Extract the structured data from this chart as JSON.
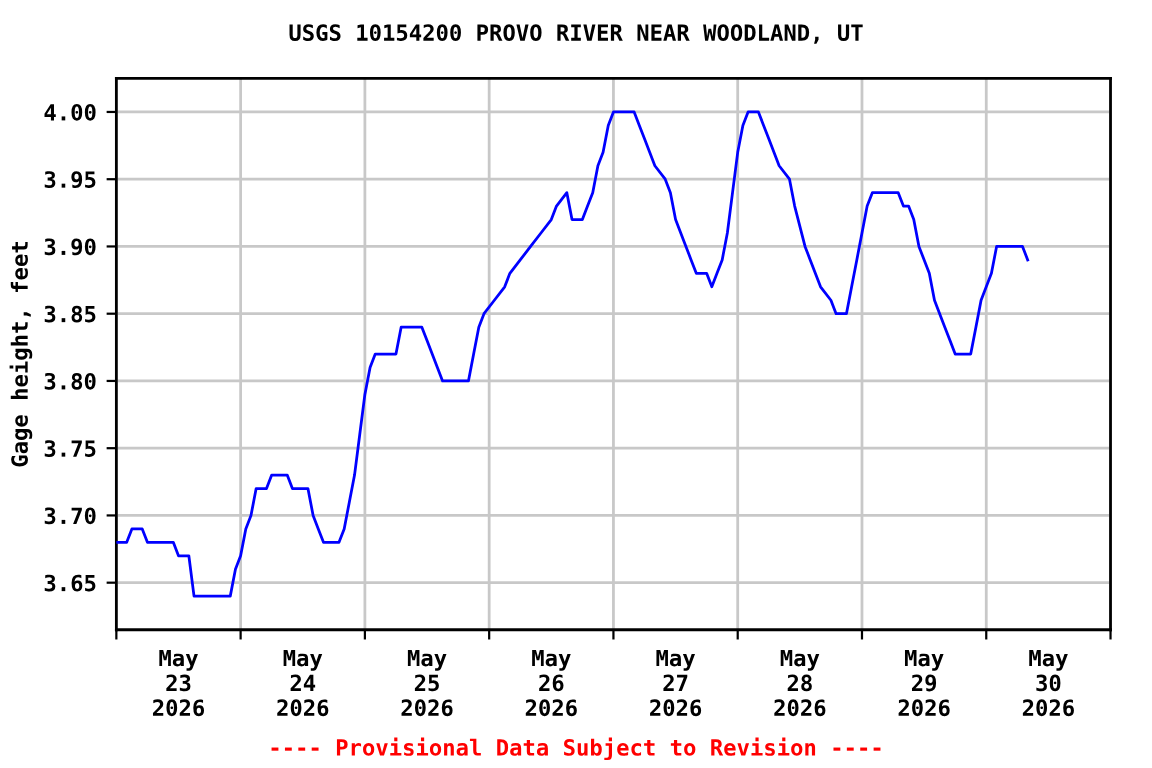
{
  "chart_data": {
    "type": "line",
    "title": "USGS 10154200 PROVO RIVER NEAR WOODLAND, UT",
    "ylabel": "Gage height, feet",
    "annotations": [
      "---- Provisional Data Subject to Revision ----"
    ],
    "x": [
      "2026-05-23T00:00",
      "2026-05-23T02:00",
      "2026-05-23T03:00",
      "2026-05-23T05:00",
      "2026-05-23T06:00",
      "2026-05-23T11:00",
      "2026-05-23T12:00",
      "2026-05-23T14:00",
      "2026-05-23T15:00",
      "2026-05-23T22:00",
      "2026-05-23T23:00",
      "2026-05-24T00:00",
      "2026-05-24T01:00",
      "2026-05-24T02:00",
      "2026-05-24T03:00",
      "2026-05-24T05:00",
      "2026-05-24T06:00",
      "2026-05-24T09:00",
      "2026-05-24T10:00",
      "2026-05-24T13:00",
      "2026-05-24T14:00",
      "2026-05-24T15:00",
      "2026-05-24T16:00",
      "2026-05-24T19:00",
      "2026-05-24T20:00",
      "2026-05-24T21:00",
      "2026-05-24T22:00",
      "2026-05-24T23:00",
      "2026-05-25T00:00",
      "2026-05-25T01:00",
      "2026-05-25T02:00",
      "2026-05-25T06:00",
      "2026-05-25T07:00",
      "2026-05-25T11:00",
      "2026-05-25T12:00",
      "2026-05-25T13:00",
      "2026-05-25T14:00",
      "2026-05-25T15:00",
      "2026-05-25T20:00",
      "2026-05-25T21:00",
      "2026-05-25T22:00",
      "2026-05-25T23:00",
      "2026-05-26T01:00",
      "2026-05-26T03:00",
      "2026-05-26T04:00",
      "2026-05-26T06:00",
      "2026-05-26T08:00",
      "2026-05-26T10:00",
      "2026-05-26T12:00",
      "2026-05-26T13:00",
      "2026-05-26T15:00",
      "2026-05-26T16:00",
      "2026-05-26T18:00",
      "2026-05-26T19:00",
      "2026-05-26T20:00",
      "2026-05-26T21:00",
      "2026-05-26T22:00",
      "2026-05-26T23:00",
      "2026-05-27T00:00",
      "2026-05-27T04:00",
      "2026-05-27T05:00",
      "2026-05-27T06:00",
      "2026-05-27T07:00",
      "2026-05-27T08:00",
      "2026-05-27T10:00",
      "2026-05-27T11:00",
      "2026-05-27T12:00",
      "2026-05-27T14:00",
      "2026-05-27T15:00",
      "2026-05-27T16:00",
      "2026-05-27T18:00",
      "2026-05-27T19:00",
      "2026-05-27T20:00",
      "2026-05-27T21:00",
      "2026-05-27T22:00",
      "2026-05-27T23:00",
      "2026-05-28T00:00",
      "2026-05-28T01:00",
      "2026-05-28T02:00",
      "2026-05-28T04:00",
      "2026-05-28T05:00",
      "2026-05-28T06:00",
      "2026-05-28T08:00",
      "2026-05-28T10:00",
      "2026-05-28T11:00",
      "2026-05-28T13:00",
      "2026-05-28T14:00",
      "2026-05-28T16:00",
      "2026-05-28T18:00",
      "2026-05-28T19:00",
      "2026-05-28T21:00",
      "2026-05-28T22:00",
      "2026-05-28T23:00",
      "2026-05-29T00:00",
      "2026-05-29T01:00",
      "2026-05-29T02:00",
      "2026-05-29T07:00",
      "2026-05-29T08:00",
      "2026-05-29T09:00",
      "2026-05-29T10:00",
      "2026-05-29T11:00",
      "2026-05-29T13:00",
      "2026-05-29T14:00",
      "2026-05-29T16:00",
      "2026-05-29T17:00",
      "2026-05-29T18:00",
      "2026-05-29T21:00",
      "2026-05-29T22:00",
      "2026-05-29T23:00",
      "2026-05-30T00:00",
      "2026-05-30T01:00",
      "2026-05-30T02:00",
      "2026-05-30T07:00",
      "2026-05-30T08:00"
    ],
    "series": [
      {
        "color": "#0000ff",
        "values": [
          3.68,
          3.68,
          3.69,
          3.69,
          3.68,
          3.68,
          3.67,
          3.67,
          3.64,
          3.64,
          3.66,
          3.67,
          3.69,
          3.7,
          3.72,
          3.72,
          3.73,
          3.73,
          3.72,
          3.72,
          3.7,
          3.69,
          3.68,
          3.68,
          3.69,
          3.71,
          3.73,
          3.76,
          3.79,
          3.81,
          3.82,
          3.82,
          3.84,
          3.84,
          3.83,
          3.82,
          3.81,
          3.8,
          3.8,
          3.82,
          3.84,
          3.85,
          3.86,
          3.87,
          3.88,
          3.89,
          3.9,
          3.91,
          3.92,
          3.93,
          3.94,
          3.92,
          3.92,
          3.93,
          3.94,
          3.96,
          3.97,
          3.99,
          4.0,
          4.0,
          3.99,
          3.98,
          3.97,
          3.96,
          3.95,
          3.94,
          3.92,
          3.9,
          3.89,
          3.88,
          3.88,
          3.87,
          3.88,
          3.89,
          3.91,
          3.94,
          3.97,
          3.99,
          4.0,
          4.0,
          3.99,
          3.98,
          3.96,
          3.95,
          3.93,
          3.9,
          3.89,
          3.87,
          3.86,
          3.85,
          3.85,
          3.87,
          3.89,
          3.91,
          3.93,
          3.94,
          3.94,
          3.93,
          3.93,
          3.92,
          3.9,
          3.88,
          3.86,
          3.84,
          3.83,
          3.82,
          3.82,
          3.84,
          3.86,
          3.87,
          3.88,
          3.9,
          3.9,
          3.89
        ]
      }
    ],
    "xlim": [
      "2026-05-23T00:00",
      "2026-05-31T00:00"
    ],
    "xticks": [
      {
        "value": "2026-05-23T00:00",
        "label": null
      },
      {
        "value": "2026-05-23T12:00",
        "label": "May\n23\n2026"
      },
      {
        "value": "2026-05-24T00:00",
        "label": null
      },
      {
        "value": "2026-05-24T12:00",
        "label": "May\n24\n2026"
      },
      {
        "value": "2026-05-25T00:00",
        "label": null
      },
      {
        "value": "2026-05-25T12:00",
        "label": "May\n25\n2026"
      },
      {
        "value": "2026-05-26T00:00",
        "label": null
      },
      {
        "value": "2026-05-26T12:00",
        "label": "May\n26\n2026"
      },
      {
        "value": "2026-05-27T00:00",
        "label": null
      },
      {
        "value": "2026-05-27T12:00",
        "label": "May\n27\n2026"
      },
      {
        "value": "2026-05-28T00:00",
        "label": null
      },
      {
        "value": "2026-05-28T12:00",
        "label": "May\n28\n2026"
      },
      {
        "value": "2026-05-29T00:00",
        "label": null
      },
      {
        "value": "2026-05-29T12:00",
        "label": "May\n29\n2026"
      },
      {
        "value": "2026-05-30T00:00",
        "label": null
      },
      {
        "value": "2026-05-30T12:00",
        "label": "May\n30\n2026"
      },
      {
        "value": "2026-05-31T00:00",
        "label": null
      }
    ],
    "ylim": [
      3.615,
      4.025
    ],
    "yticks": [
      {
        "value": 3.65,
        "label": "3.65"
      },
      {
        "value": 3.7,
        "label": "3.70"
      },
      {
        "value": 3.75,
        "label": "3.75"
      },
      {
        "value": 3.8,
        "label": "3.80"
      },
      {
        "value": 3.85,
        "label": "3.85"
      },
      {
        "value": 3.9,
        "label": "3.90"
      },
      {
        "value": 3.95,
        "label": "3.95"
      },
      {
        "value": 4.0,
        "label": "4.00"
      }
    ],
    "grid": true,
    "legend": false,
    "marker": "none",
    "line_style": "solid"
  }
}
